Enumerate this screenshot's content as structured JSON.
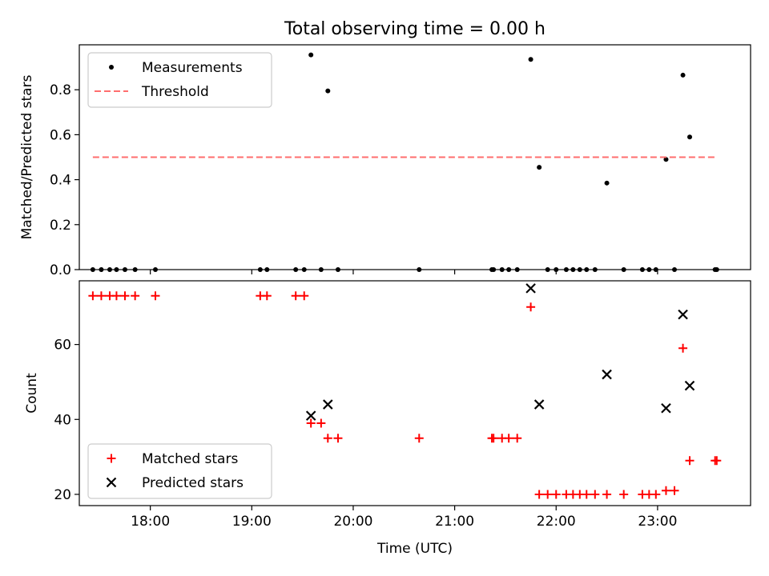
{
  "figure_title": "Total observing time = 0.00 h",
  "chart_data": [
    {
      "type": "scatter",
      "x_axis": "time",
      "xlim": [
        "17:18",
        "23:55"
      ],
      "x_ticks": [
        "18:00",
        "19:00",
        "20:00",
        "21:00",
        "22:00",
        "23:00"
      ],
      "ylabel": "Matched/Predicted stars",
      "ylim": [
        0,
        1.0
      ],
      "y_ticks": [
        "0.0",
        "0.2",
        "0.4",
        "0.6",
        "0.8"
      ],
      "legend_position": "top-left",
      "series": [
        {
          "name": "Measurements",
          "marker": "dot",
          "color": "#000000",
          "points": [
            [
              "17:26",
              0
            ],
            [
              "17:31",
              0
            ],
            [
              "17:36",
              0
            ],
            [
              "17:40",
              0
            ],
            [
              "17:45",
              0
            ],
            [
              "17:51",
              0
            ],
            [
              "18:03",
              0
            ],
            [
              "19:05",
              0
            ],
            [
              "19:09",
              0
            ],
            [
              "19:26",
              0
            ],
            [
              "19:31",
              0
            ],
            [
              "19:35",
              0.955
            ],
            [
              "19:41",
              0
            ],
            [
              "19:45",
              0.795
            ],
            [
              "19:51",
              0
            ],
            [
              "20:39",
              0
            ],
            [
              "21:22",
              0
            ],
            [
              "21:23",
              0
            ],
            [
              "21:28",
              0
            ],
            [
              "21:32",
              0
            ],
            [
              "21:37",
              0
            ],
            [
              "21:45",
              0.935
            ],
            [
              "21:50",
              0.455
            ],
            [
              "21:55",
              0
            ],
            [
              "22:00",
              0
            ],
            [
              "22:06",
              0
            ],
            [
              "22:10",
              0
            ],
            [
              "22:14",
              0
            ],
            [
              "22:18",
              0
            ],
            [
              "22:23",
              0
            ],
            [
              "22:30",
              0.385
            ],
            [
              "22:40",
              0
            ],
            [
              "22:51",
              0
            ],
            [
              "22:55",
              0
            ],
            [
              "22:59",
              0
            ],
            [
              "23:05",
              0.49
            ],
            [
              "23:10",
              0
            ],
            [
              "23:15",
              0.865
            ],
            [
              "23:19",
              0.59
            ],
            [
              "23:34",
              0
            ],
            [
              "23:35",
              0
            ]
          ]
        },
        {
          "name": "Threshold",
          "line_style": "dashed",
          "color": "#ff6e6e",
          "x_range": [
            "17:26",
            "23:35"
          ],
          "y": 0.5
        }
      ]
    },
    {
      "type": "scatter",
      "x_axis": "time",
      "xlim": [
        "17:18",
        "23:55"
      ],
      "x_ticks": [
        "18:00",
        "19:00",
        "20:00",
        "21:00",
        "22:00",
        "23:00"
      ],
      "xlabel": "Time (UTC)",
      "ylabel": "Count",
      "ylim": [
        17,
        77
      ],
      "y_ticks": [
        "20",
        "40",
        "60"
      ],
      "legend_position": "bottom-left",
      "series": [
        {
          "name": "Matched stars",
          "marker": "plus",
          "color": "#ff0000",
          "points": [
            [
              "17:26",
              73
            ],
            [
              "17:31",
              73
            ],
            [
              "17:36",
              73
            ],
            [
              "17:40",
              73
            ],
            [
              "17:45",
              73
            ],
            [
              "17:51",
              73
            ],
            [
              "18:03",
              73
            ],
            [
              "19:05",
              73
            ],
            [
              "19:09",
              73
            ],
            [
              "19:26",
              73
            ],
            [
              "19:31",
              73
            ],
            [
              "19:35",
              39
            ],
            [
              "19:41",
              39
            ],
            [
              "19:45",
              35
            ],
            [
              "19:51",
              35
            ],
            [
              "20:39",
              35
            ],
            [
              "21:22",
              35
            ],
            [
              "21:23",
              35
            ],
            [
              "21:28",
              35
            ],
            [
              "21:32",
              35
            ],
            [
              "21:37",
              35
            ],
            [
              "21:45",
              70
            ],
            [
              "21:50",
              20
            ],
            [
              "21:55",
              20
            ],
            [
              "22:00",
              20
            ],
            [
              "22:06",
              20
            ],
            [
              "22:10",
              20
            ],
            [
              "22:14",
              20
            ],
            [
              "22:18",
              20
            ],
            [
              "22:23",
              20
            ],
            [
              "22:30",
              20
            ],
            [
              "22:40",
              20
            ],
            [
              "22:51",
              20
            ],
            [
              "22:55",
              20
            ],
            [
              "22:59",
              20
            ],
            [
              "23:05",
              21
            ],
            [
              "23:10",
              21
            ],
            [
              "23:15",
              59
            ],
            [
              "23:19",
              29
            ],
            [
              "23:34",
              29
            ],
            [
              "23:35",
              29
            ]
          ]
        },
        {
          "name": "Predicted stars",
          "marker": "x",
          "color": "#000000",
          "points": [
            [
              "19:35",
              41
            ],
            [
              "19:45",
              44
            ],
            [
              "21:45",
              75
            ],
            [
              "21:50",
              44
            ],
            [
              "22:30",
              52
            ],
            [
              "23:05",
              43
            ],
            [
              "23:15",
              68
            ],
            [
              "23:19",
              49
            ]
          ]
        }
      ]
    }
  ]
}
